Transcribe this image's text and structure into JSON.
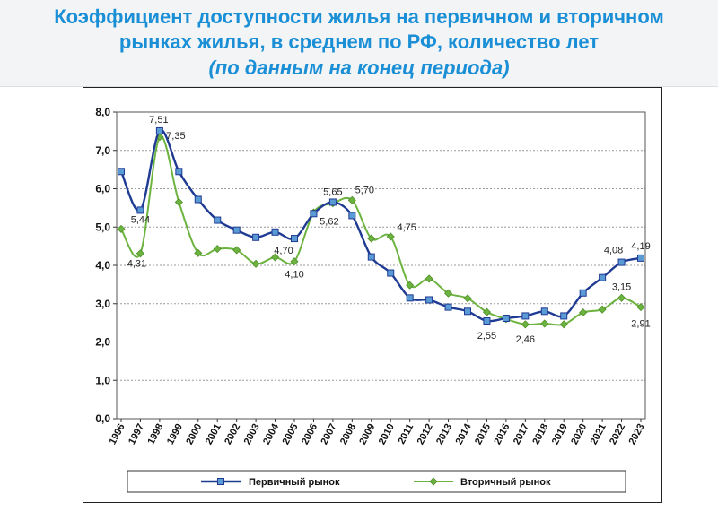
{
  "header": {
    "title_line1": "Коэффициент доступности жилья на первичном и вторичном",
    "title_line2": "рынках жилья, в среднем по РФ, количество лет",
    "title_line3": "(по данным на конец периода)"
  },
  "colors": {
    "primary": "#1f3a93",
    "primary_marker": "#5b9bd5",
    "secondary": "#6cb33f",
    "title": "#1a8fd6"
  },
  "chart_data": {
    "type": "line",
    "title": "Коэффициент доступности жилья на первичном и вторичном рынках жилья, в среднем по РФ, количество лет",
    "subtitle": "(по данным на конец периода)",
    "categories": [
      "1996",
      "1997",
      "1998",
      "1999",
      "2000",
      "2001",
      "2002",
      "2003",
      "2004",
      "2005",
      "2006",
      "2007",
      "2008",
      "2009",
      "2010",
      "2011",
      "2012",
      "2013",
      "2014",
      "2015",
      "2016",
      "2017",
      "2018",
      "2019",
      "2020",
      "2021",
      "2022",
      "2023"
    ],
    "ylim": [
      0,
      8
    ],
    "yticks": [
      "0,0",
      "1,0",
      "2,0",
      "3,0",
      "4,0",
      "5,0",
      "6,0",
      "7,0",
      "8,0"
    ],
    "grid": true,
    "legend_position": "bottom",
    "series": [
      {
        "name": "Первичный рынок",
        "values": [
          6.45,
          5.44,
          7.51,
          6.45,
          5.72,
          5.18,
          4.92,
          4.73,
          4.87,
          4.7,
          5.35,
          5.65,
          5.3,
          4.22,
          3.8,
          3.15,
          3.1,
          2.91,
          2.8,
          2.55,
          2.62,
          2.68,
          2.8,
          2.68,
          3.28,
          3.68,
          4.08,
          4.19
        ]
      },
      {
        "name": "Вторичный рынок",
        "values": [
          4.95,
          4.31,
          7.35,
          5.65,
          4.32,
          4.43,
          4.4,
          4.04,
          4.21,
          4.1,
          5.38,
          5.62,
          5.7,
          4.7,
          4.75,
          3.48,
          3.65,
          3.27,
          3.14,
          2.78,
          2.6,
          2.46,
          2.48,
          2.46,
          2.77,
          2.85,
          3.15,
          2.91
        ]
      }
    ],
    "annotations": [
      {
        "series": 0,
        "index": 1,
        "text": "5,44"
      },
      {
        "series": 0,
        "index": 2,
        "text": "7,51"
      },
      {
        "series": 0,
        "index": 9,
        "text": "4,70"
      },
      {
        "series": 0,
        "index": 11,
        "text": "5,65"
      },
      {
        "series": 0,
        "index": 19,
        "text": "2,55"
      },
      {
        "series": 0,
        "index": 26,
        "text": "4,08"
      },
      {
        "series": 0,
        "index": 27,
        "text": "4,19"
      },
      {
        "series": 1,
        "index": 1,
        "text": "4,31"
      },
      {
        "series": 1,
        "index": 2,
        "text": "7,35"
      },
      {
        "series": 1,
        "index": 9,
        "text": "4,10"
      },
      {
        "series": 1,
        "index": 11,
        "text": "5,62"
      },
      {
        "series": 1,
        "index": 12,
        "text": "5,70"
      },
      {
        "series": 1,
        "index": 14,
        "text": "4,75"
      },
      {
        "series": 1,
        "index": 21,
        "text": "2,46"
      },
      {
        "series": 1,
        "index": 26,
        "text": "3,15"
      },
      {
        "series": 1,
        "index": 27,
        "text": "2,91"
      }
    ]
  }
}
